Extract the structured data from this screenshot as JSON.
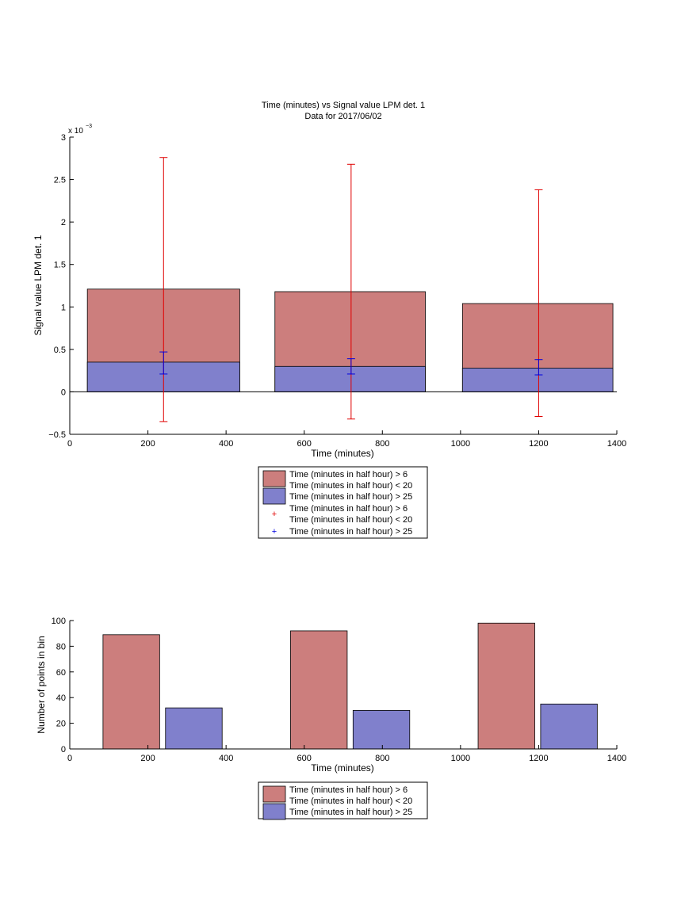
{
  "chart_data": [
    {
      "type": "bar",
      "title": "Time (minutes) vs Signal value LPM det. 1",
      "subtitle": "Data for 2017/06/02",
      "xlabel": "Time (minutes)",
      "ylabel": "Signal value LPM det. 1",
      "exponent_base": "x 10",
      "exponent_power": "−3",
      "xlim": [
        0,
        1400
      ],
      "ylim": [
        -0.0005,
        0.003
      ],
      "xticks": [
        0,
        200,
        400,
        600,
        800,
        1000,
        1200,
        1400
      ],
      "xtick_labels": [
        "0",
        "200",
        "400",
        "600",
        "800",
        "1000",
        "1200",
        "1400"
      ],
      "yticks": [
        -0.0005,
        0,
        0.0005,
        0.001,
        0.0015,
        0.002,
        0.0025,
        0.003
      ],
      "ytick_labels": [
        "−0.5",
        "0",
        "0.5",
        "1",
        "1.5",
        "2",
        "2.5",
        "3"
      ],
      "grid": false,
      "legend_position": "below",
      "series": [
        {
          "name": "Time (minutes in half hour) > 6",
          "name_line2": "Time (minutes in half hour) < 20",
          "color": "#cc7e7d",
          "bars": [
            {
              "x0": 45,
              "x1": 435,
              "value": 0.00121
            },
            {
              "x0": 525,
              "x1": 910,
              "value": 0.00118
            },
            {
              "x0": 1005,
              "x1": 1390,
              "value": 0.00104
            }
          ]
        },
        {
          "name": "Time (minutes in half hour) > 25",
          "color": "#8080cc",
          "bars": [
            {
              "x0": 45,
              "x1": 435,
              "value": 0.00035
            },
            {
              "x0": 525,
              "x1": 910,
              "value": 0.0003
            },
            {
              "x0": 1005,
              "x1": 1390,
              "value": 0.00028
            }
          ]
        }
      ],
      "errorbars": [
        {
          "name": "Time (minutes in half hour) > 6",
          "name_line2": "Time (minutes in half hour) < 20",
          "color": "#e00000",
          "points": [
            {
              "x": 240,
              "low": -0.00035,
              "high": 0.00276
            },
            {
              "x": 720,
              "low": -0.00032,
              "high": 0.00268
            },
            {
              "x": 1200,
              "low": -0.00029,
              "high": 0.00238
            }
          ]
        },
        {
          "name": "Time (minutes in half hour) > 25",
          "color": "#0000e0",
          "points": [
            {
              "x": 240,
              "low": 0.00021,
              "high": 0.00047
            },
            {
              "x": 720,
              "low": 0.00021,
              "high": 0.00039
            },
            {
              "x": 1200,
              "low": 0.0002,
              "high": 0.00038
            }
          ]
        }
      ]
    },
    {
      "type": "bar",
      "xlabel": "Time (minutes)",
      "ylabel": "Number of points in bin",
      "xlim": [
        0,
        1400
      ],
      "ylim": [
        0,
        100
      ],
      "xticks": [
        0,
        200,
        400,
        600,
        800,
        1000,
        1200,
        1400
      ],
      "xtick_labels": [
        "0",
        "200",
        "400",
        "600",
        "800",
        "1000",
        "1200",
        "1400"
      ],
      "yticks": [
        0,
        20,
        40,
        60,
        80,
        100
      ],
      "ytick_labels": [
        "0",
        "20",
        "40",
        "60",
        "80",
        "100"
      ],
      "grid": false,
      "legend_position": "below",
      "series": [
        {
          "name": "Time (minutes in half hour) > 6",
          "name_line2": "Time (minutes in half hour) < 20",
          "color": "#cc7e7d",
          "bars": [
            {
              "x0": 85,
              "x1": 230,
              "value": 89
            },
            {
              "x0": 565,
              "x1": 710,
              "value": 92
            },
            {
              "x0": 1045,
              "x1": 1190,
              "value": 98
            }
          ]
        },
        {
          "name": "Time (minutes in half hour) > 25",
          "color": "#8080cc",
          "bars": [
            {
              "x0": 245,
              "x1": 390,
              "value": 32
            },
            {
              "x0": 725,
              "x1": 870,
              "value": 30
            },
            {
              "x0": 1205,
              "x1": 1350,
              "value": 35
            }
          ]
        }
      ]
    }
  ]
}
